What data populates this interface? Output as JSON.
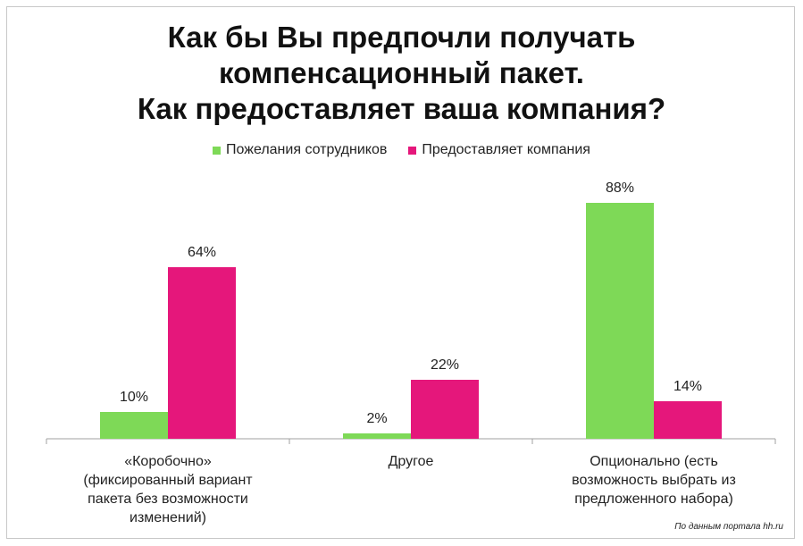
{
  "chart_data": {
    "type": "bar",
    "title_lines": [
      "Как бы Вы предпочли получать",
      "компенсационный пакет.",
      "Как предоставляет ваша компания?"
    ],
    "categories": [
      [
        "«Коробочно»",
        "(фиксированный вариант",
        "пакета без возможности",
        "изменений)"
      ],
      [
        "Другое"
      ],
      [
        "Опционально (есть",
        "возможность выбрать из",
        "предложенного набора)"
      ]
    ],
    "series": [
      {
        "name": "Пожелания сотрудников",
        "values": [
          10,
          2,
          88
        ],
        "labels": [
          "10%",
          "2%",
          "88%"
        ],
        "color": "#7ed957"
      },
      {
        "name": "Предоставляет компания",
        "values": [
          64,
          22,
          14
        ],
        "labels": [
          "64%",
          "22%",
          "14%"
        ],
        "color": "#e5177b"
      }
    ],
    "ylim": [
      0,
      100
    ],
    "legend_position": "top-center"
  },
  "source_note": "По данным портала hh.ru"
}
